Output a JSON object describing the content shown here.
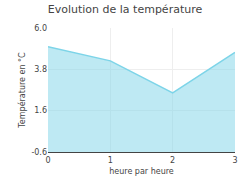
{
  "chart_data": {
    "type": "area",
    "title": "Evolution de la température",
    "xlabel": "heure par heure",
    "ylabel": "Température en °C",
    "x": [
      0,
      1,
      2,
      3
    ],
    "values": [
      5.0,
      4.25,
      2.55,
      4.7
    ],
    "xlim": [
      0,
      3
    ],
    "ylim": [
      -0.6,
      6.0
    ],
    "xticks": [
      0,
      1,
      2,
      3
    ],
    "yticks": [
      -0.6,
      1.6,
      3.8,
      {
        "value": 6.0,
        "label": "6.0"
      }
    ],
    "color": "#7dd4e8",
    "grid": true
  }
}
